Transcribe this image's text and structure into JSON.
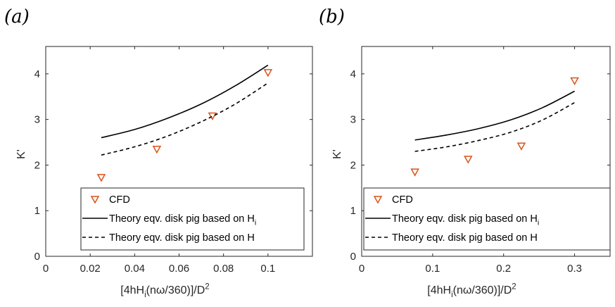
{
  "chart_data": [
    {
      "type": "line",
      "panel_label": "(a)",
      "xlabel": "[4hH_i(nω/360)]/D^2",
      "ylabel": "K'",
      "xlim": [
        0,
        0.12
      ],
      "ylim": [
        0,
        4.6
      ],
      "xticks": [
        0,
        0.02,
        0.04,
        0.06,
        0.08,
        0.1
      ],
      "xtick_labels": [
        "0",
        "0.02",
        "0.04",
        "0.06",
        "0.08",
        "0.1"
      ],
      "yticks": [
        0,
        1,
        2,
        3,
        4
      ],
      "ytick_labels": [
        "0",
        "1",
        "2",
        "3",
        "4"
      ],
      "legend_position": "bottom-right",
      "series": [
        {
          "name": "CFD",
          "kind": "scatter",
          "marker": "triangle-down",
          "color": "#d95319",
          "x": [
            0.025,
            0.05,
            0.075,
            0.1
          ],
          "y": [
            1.73,
            2.35,
            3.08,
            4.03
          ]
        },
        {
          "name": "Theory eqv. disk pig based on H_i",
          "kind": "line",
          "dash": "solid",
          "color": "#000000",
          "x": [
            0.025,
            0.04,
            0.055,
            0.07,
            0.085,
            0.1
          ],
          "y": [
            2.6,
            2.78,
            3.03,
            3.34,
            3.73,
            4.19
          ]
        },
        {
          "name": "Theory eqv. disk pig based on H",
          "kind": "line",
          "dash": "dashed",
          "color": "#000000",
          "x": [
            0.025,
            0.04,
            0.055,
            0.07,
            0.085,
            0.1
          ],
          "y": [
            2.22,
            2.4,
            2.64,
            2.95,
            3.33,
            3.8
          ]
        }
      ]
    },
    {
      "type": "line",
      "panel_label": "(b)",
      "xlabel": "[4hH_i(nω/360)]/D^2",
      "ylabel": "K'",
      "xlim": [
        0,
        0.35
      ],
      "ylim": [
        0,
        4.6
      ],
      "xticks": [
        0,
        0.1,
        0.2,
        0.3
      ],
      "xtick_labels": [
        "0",
        "0.1",
        "0.2",
        "0.3"
      ],
      "yticks": [
        0,
        1,
        2,
        3,
        4
      ],
      "ytick_labels": [
        "0",
        "1",
        "2",
        "3",
        "4"
      ],
      "legend_position": "bottom-right",
      "series": [
        {
          "name": "CFD",
          "kind": "scatter",
          "marker": "triangle-down",
          "color": "#d95319",
          "x": [
            0.075,
            0.15,
            0.225,
            0.3
          ],
          "y": [
            1.85,
            2.13,
            2.42,
            3.85
          ]
        },
        {
          "name": "Theory eqv. disk pig based on H_i",
          "kind": "line",
          "dash": "solid",
          "color": "#000000",
          "x": [
            0.075,
            0.12,
            0.165,
            0.21,
            0.255,
            0.3
          ],
          "y": [
            2.55,
            2.66,
            2.8,
            2.99,
            3.26,
            3.62
          ]
        },
        {
          "name": "Theory eqv. disk pig based on H",
          "kind": "line",
          "dash": "dashed",
          "color": "#000000",
          "x": [
            0.075,
            0.12,
            0.165,
            0.21,
            0.255,
            0.3
          ],
          "y": [
            2.3,
            2.4,
            2.54,
            2.72,
            2.99,
            3.37
          ]
        }
      ]
    }
  ]
}
